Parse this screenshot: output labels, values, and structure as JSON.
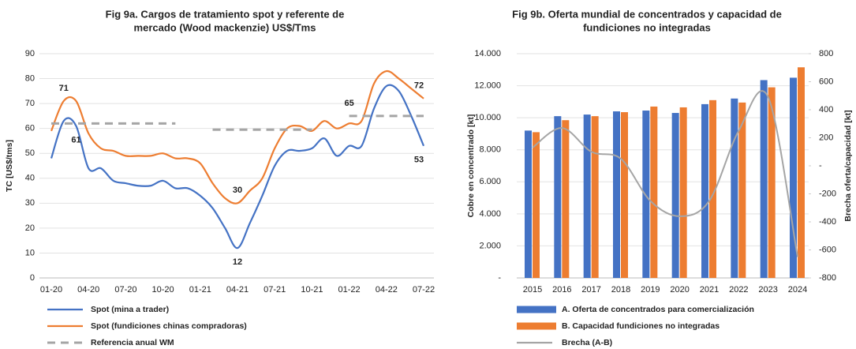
{
  "chart_data": [
    {
      "type": "line",
      "title": [
        "Fig 9a. Cargos de tratamiento spot y referente de",
        "mercado (Wood mackenzie) US$/Tms"
      ],
      "y_label": "TC [US$/tms]",
      "categories": [
        "01-20",
        null,
        null,
        "04-20",
        null,
        null,
        "07-20",
        null,
        null,
        "10-20",
        null,
        null,
        "01-21",
        null,
        null,
        "04-21",
        null,
        null,
        "07-21",
        null,
        null,
        "10-21",
        null,
        null,
        "01-22",
        null,
        null,
        "04-22",
        null,
        null,
        "07-22"
      ],
      "ylim": [
        0,
        90
      ],
      "yticks": [
        0,
        10,
        20,
        30,
        40,
        50,
        60,
        70,
        80,
        90
      ],
      "grid": true,
      "series": [
        {
          "name": "Spot (mina a trader)",
          "color": "#4472c4",
          "values": [
            48,
            63,
            61,
            44,
            44,
            39,
            38,
            37,
            37,
            39,
            36,
            36,
            33,
            28,
            20,
            12,
            22,
            33,
            45,
            51,
            51,
            52,
            56,
            49,
            53,
            53,
            68,
            77,
            75,
            65,
            53
          ],
          "value_labels": [
            null,
            null,
            "61",
            null,
            null,
            null,
            null,
            null,
            null,
            null,
            null,
            null,
            null,
            null,
            null,
            "12",
            null,
            null,
            null,
            null,
            null,
            null,
            null,
            null,
            null,
            null,
            null,
            null,
            null,
            null,
            "53"
          ]
        },
        {
          "name": "Spot (fundiciones chinas compradoras)",
          "color": "#ed7d31",
          "values": [
            59,
            71,
            71,
            58,
            52,
            51,
            49,
            49,
            49,
            50,
            48,
            48,
            46,
            38,
            32,
            30,
            35,
            40,
            52,
            60,
            61,
            59,
            63,
            60,
            62,
            63,
            78,
            83,
            80,
            76,
            72
          ],
          "value_labels": [
            null,
            "71",
            null,
            null,
            null,
            null,
            null,
            null,
            null,
            null,
            null,
            null,
            null,
            null,
            null,
            "30",
            null,
            null,
            null,
            null,
            null,
            null,
            null,
            null,
            null,
            null,
            null,
            null,
            null,
            null,
            "72"
          ]
        },
        {
          "name": "Referencia anual WM",
          "color": "#a5a5a5",
          "dashed": true,
          "values": [
            62,
            62,
            62,
            62,
            62,
            62,
            62,
            62,
            62,
            62,
            62,
            null,
            null,
            59.5,
            59.5,
            59.5,
            59.5,
            59.5,
            59.5,
            59.5,
            59.5,
            59.5,
            null,
            null,
            65,
            65,
            65,
            65,
            65,
            65,
            65
          ],
          "value_labels": [
            null,
            null,
            null,
            null,
            null,
            null,
            null,
            null,
            null,
            null,
            null,
            null,
            null,
            null,
            null,
            null,
            null,
            null,
            null,
            null,
            null,
            null,
            null,
            null,
            "65",
            null,
            null,
            null,
            null,
            null,
            null
          ]
        }
      ]
    },
    {
      "type": "bar_line",
      "title": [
        "Fig 9b. Oferta mundial de concentrados y capacidad de",
        "fundiciones no integradas"
      ],
      "y_label": "Cobre en concentrado [kt]",
      "y2_label": "Brecha oferta/capacidad [kt]",
      "categories": [
        "2015",
        "2016",
        "2017",
        "2018",
        "2019",
        "2020",
        "2021",
        "2022",
        "2023",
        "2024"
      ],
      "ylim": [
        0,
        14000
      ],
      "yticks": [
        {
          "value": 0,
          "label": "-"
        },
        {
          "value": 2000,
          "label": "2.000"
        },
        {
          "value": 4000,
          "label": "4.000"
        },
        {
          "value": 6000,
          "label": "6.000"
        },
        {
          "value": 8000,
          "label": "8.000"
        },
        {
          "value": 10000,
          "label": "10.000"
        },
        {
          "value": 12000,
          "label": "12.000"
        },
        {
          "value": 14000,
          "label": "14.000"
        }
      ],
      "y2lim": [
        -800,
        800
      ],
      "y2ticks": [
        -800,
        -600,
        -400,
        -200,
        {
          "value": 0,
          "label": "-"
        },
        200,
        400,
        600,
        800
      ],
      "grid": true,
      "series": [
        {
          "name": "A. Oferta de concentrados para comercialización",
          "color": "#4472c4",
          "values": [
            9200,
            10100,
            10200,
            10400,
            10450,
            10300,
            10850,
            11200,
            12350,
            12500
          ]
        },
        {
          "name": "B. Capacidad fundiciones no integradas",
          "color": "#ed7d31",
          "values": [
            9100,
            9850,
            10100,
            10350,
            10700,
            10650,
            11100,
            10950,
            11900,
            13150
          ]
        },
        {
          "name": "Brecha (A-B)",
          "color": "#a5a5a5",
          "axis": "y2",
          "values": [
            130,
            270,
            100,
            50,
            -250,
            -360,
            -250,
            250,
            490,
            -650
          ]
        }
      ]
    }
  ]
}
